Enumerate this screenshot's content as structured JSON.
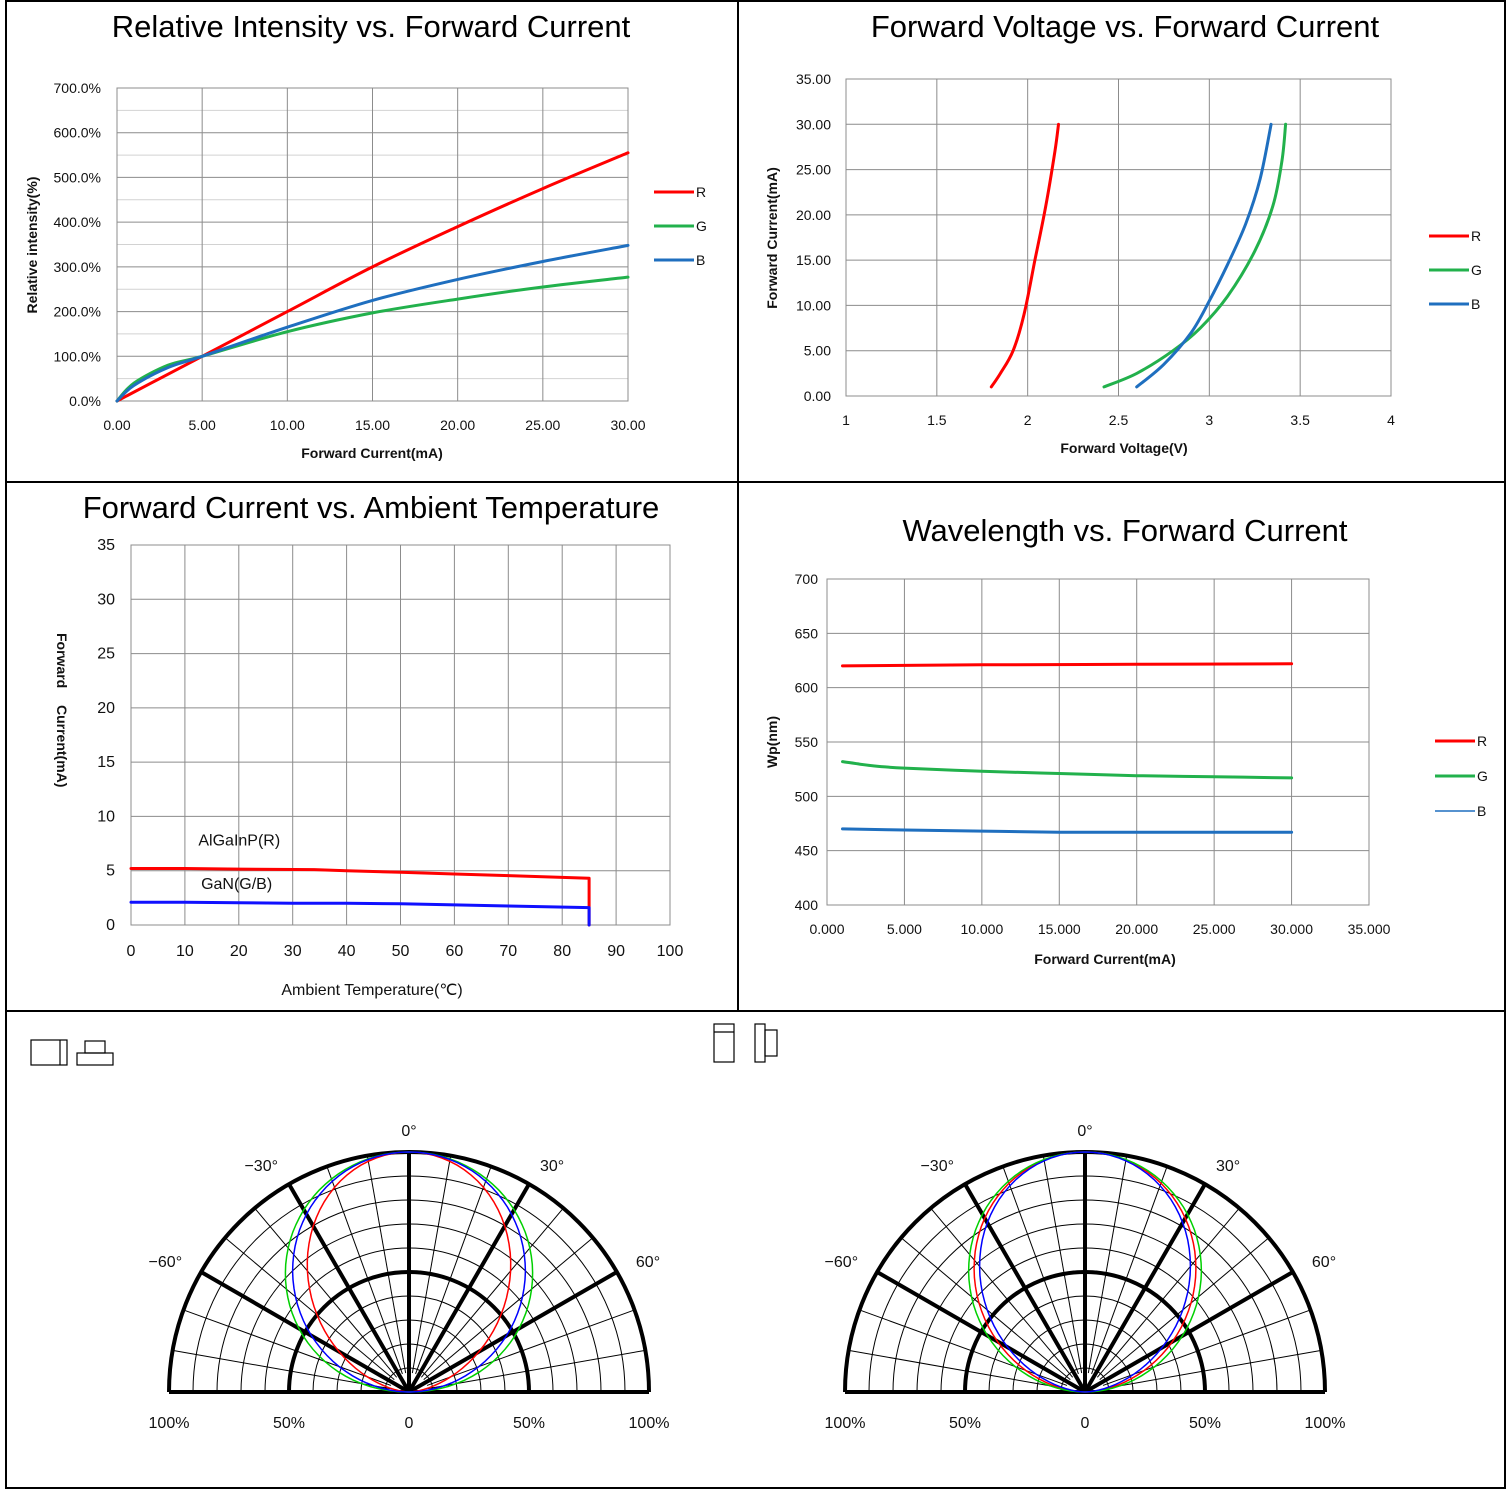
{
  "colors": {
    "R": "#ff0000",
    "G": "#22b14c",
    "B": "#1f6fbf",
    "temp_R": "#ff0000",
    "temp_B": "#1010ff",
    "polar_G": "#00d000",
    "polar_B": "#0000ff"
  },
  "chart_data": [
    {
      "id": "intensity",
      "type": "line",
      "title": "Relative Intensity vs. Forward Current",
      "xlabel": "Forward Current(mA)",
      "ylabel": "Relative intensity(%)",
      "xlim": [
        0,
        30
      ],
      "ylim": [
        0,
        700
      ],
      "xticks": [
        "0.00",
        "5.00",
        "10.00",
        "15.00",
        "20.00",
        "25.00",
        "30.00"
      ],
      "yticks": [
        "0.0%",
        "100.0%",
        "200.0%",
        "300.0%",
        "400.0%",
        "500.0%",
        "600.0%",
        "700.0%"
      ],
      "legend": "right",
      "series": [
        {
          "name": "R",
          "color": "#ff0000",
          "x": [
            0,
            2,
            5,
            10,
            15,
            20,
            25,
            30
          ],
          "y": [
            0,
            40,
            100,
            200,
            300,
            390,
            475,
            555
          ]
        },
        {
          "name": "G",
          "color": "#22b14c",
          "x": [
            0,
            1,
            3,
            5,
            10,
            15,
            20,
            25,
            30
          ],
          "y": [
            0,
            40,
            80,
            100,
            155,
            197,
            228,
            255,
            277
          ]
        },
        {
          "name": "B",
          "color": "#1f6fbf",
          "x": [
            0,
            1,
            3,
            5,
            10,
            15,
            20,
            25,
            30
          ],
          "y": [
            0,
            35,
            75,
            100,
            165,
            225,
            272,
            312,
            348
          ]
        }
      ]
    },
    {
      "id": "voltage",
      "type": "line",
      "title": "Forward Voltage vs. Forward Current",
      "xlabel": "Forward Voltage(V)",
      "ylabel": "Forward Current(mA)",
      "xlim": [
        1,
        4
      ],
      "ylim": [
        0,
        35
      ],
      "xticks": [
        "1",
        "1.5",
        "2",
        "2.5",
        "3",
        "3.5",
        "4"
      ],
      "yticks": [
        "0.00",
        "5.00",
        "10.00",
        "15.00",
        "20.00",
        "25.00",
        "30.00",
        "35.00"
      ],
      "legend": "right",
      "series": [
        {
          "name": "R",
          "color": "#ff0000",
          "x": [
            1.8,
            1.85,
            1.92,
            1.98,
            2.04,
            2.1,
            2.15,
            2.17
          ],
          "y": [
            1,
            2.5,
            5,
            9,
            15,
            21,
            27,
            30
          ]
        },
        {
          "name": "G",
          "color": "#22b14c",
          "x": [
            2.42,
            2.6,
            2.8,
            2.95,
            3.1,
            3.25,
            3.35,
            3.4,
            3.42
          ],
          "y": [
            1,
            2.5,
            5,
            7.5,
            11,
            16,
            21,
            26,
            30
          ]
        },
        {
          "name": "B",
          "color": "#1f6fbf",
          "x": [
            2.6,
            2.75,
            2.9,
            3.0,
            3.1,
            3.2,
            3.28,
            3.34
          ],
          "y": [
            1,
            3.5,
            7,
            10.5,
            14.5,
            19,
            24,
            30
          ]
        }
      ]
    },
    {
      "id": "temperature",
      "type": "line",
      "title": "Forward Current vs. Ambient Temperature",
      "xlabel": "Ambient  Temperature(℃)",
      "ylabel_parts": [
        "Forward",
        "Current(mA)"
      ],
      "xlim": [
        0,
        100
      ],
      "ylim": [
        0,
        35
      ],
      "xticks": [
        "0",
        "10",
        "20",
        "30",
        "40",
        "50",
        "60",
        "70",
        "80",
        "90",
        "100"
      ],
      "yticks": [
        "0",
        "5",
        "10",
        "15",
        "20",
        "25",
        "30",
        "35"
      ],
      "annotations": [
        "AlGaInP(R)",
        "GaN(G/B)"
      ],
      "series": [
        {
          "name": "AlGaInP(R)",
          "color": "#ff0000",
          "x": [
            0,
            10,
            20,
            34,
            40,
            50,
            60,
            70,
            85,
            85
          ],
          "y": [
            5.2,
            5.2,
            5.15,
            5.1,
            5.0,
            4.85,
            4.7,
            4.55,
            4.3,
            0
          ]
        },
        {
          "name": "GaN(G/B)",
          "color": "#1010ff",
          "x": [
            0,
            10,
            20,
            30,
            40,
            50,
            60,
            70,
            85,
            85
          ],
          "y": [
            2.1,
            2.1,
            2.05,
            2.0,
            2.0,
            1.95,
            1.85,
            1.75,
            1.6,
            0
          ]
        }
      ]
    },
    {
      "id": "wavelength",
      "type": "line",
      "title": "Wavelength vs. Forward Current",
      "xlabel": "Forward Current(mA)",
      "ylabel": "Wp(nm)",
      "xlim": [
        0,
        35
      ],
      "ylim": [
        400,
        700
      ],
      "xticks": [
        "0.000",
        "5.000",
        "10.000",
        "15.000",
        "20.000",
        "25.000",
        "30.000",
        "35.000"
      ],
      "yticks": [
        "400",
        "450",
        "500",
        "550",
        "600",
        "650",
        "700"
      ],
      "legend": "right",
      "series": [
        {
          "name": "R",
          "color": "#ff0000",
          "x": [
            1,
            10,
            20,
            30
          ],
          "y": [
            620,
            621,
            621.5,
            622
          ]
        },
        {
          "name": "G",
          "color": "#22b14c",
          "x": [
            1,
            3,
            5,
            10,
            15,
            20,
            25,
            30
          ],
          "y": [
            532,
            528,
            526,
            523,
            521,
            519,
            518,
            517
          ]
        },
        {
          "name": "B",
          "color": "#1f6fbf",
          "x": [
            1,
            5,
            10,
            15,
            20,
            25,
            30
          ],
          "y": [
            470,
            469,
            468,
            467,
            467,
            467,
            467
          ]
        }
      ]
    }
  ],
  "polar": {
    "angle_labels": {
      "top": "0°",
      "l30": "−30°",
      "r30": "30°",
      "l60": "−60°",
      "r60": "60°"
    },
    "radial_labels": [
      "100%",
      "50%",
      "0",
      "50%",
      "100%"
    ],
    "left": {
      "icon": "package-side-icons",
      "series": [
        {
          "name": "R",
          "color": "#ff0000",
          "half_width_deg": 50
        },
        {
          "name": "G",
          "color": "#00d000",
          "half_width_deg": 62
        },
        {
          "name": "B",
          "color": "#0000ff",
          "half_width_deg": 58
        }
      ]
    },
    "right": {
      "icon": "package-top-icons",
      "series": [
        {
          "name": "R",
          "color": "#ff0000",
          "half_width_deg": 55
        },
        {
          "name": "G",
          "color": "#00d000",
          "half_width_deg": 58
        },
        {
          "name": "B",
          "color": "#0000ff",
          "half_width_deg": 52
        }
      ]
    }
  }
}
